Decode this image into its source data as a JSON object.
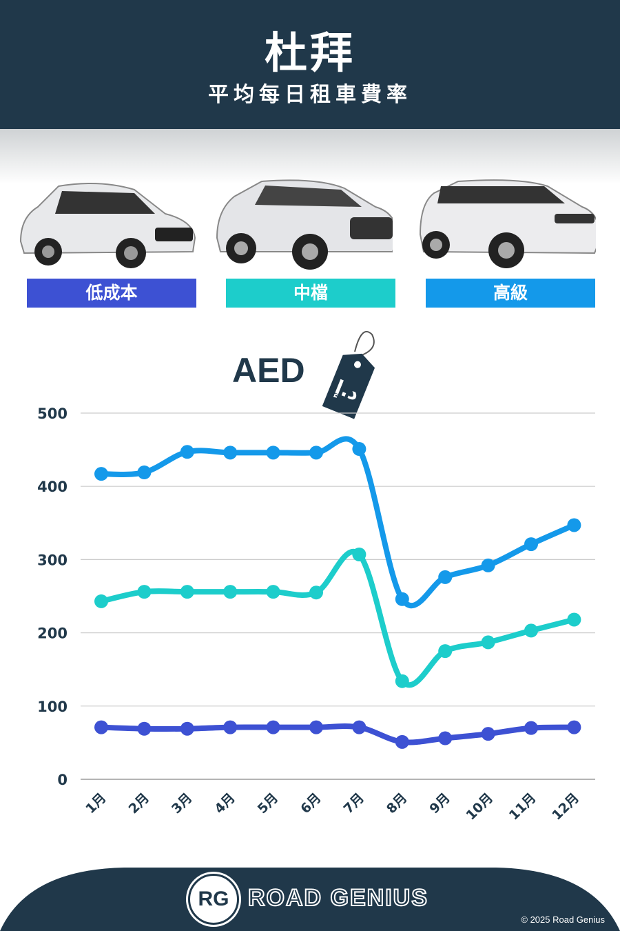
{
  "header": {
    "title": "杜拜",
    "subtitle": "平均每日租車費率"
  },
  "categories_legend": [
    {
      "label": "低成本",
      "color": "#3d51d3",
      "icon": "hatchback-car"
    },
    {
      "label": "中檔",
      "color": "#1dcdcb",
      "icon": "suv-car"
    },
    {
      "label": "高級",
      "color": "#1499ea",
      "icon": "luxury-suv-car"
    }
  ],
  "currency": {
    "label": "AED",
    "tag_text": "د.إ",
    "icon": "price-tag-icon"
  },
  "chart_data": {
    "type": "line",
    "title": "",
    "xlabel": "",
    "ylabel": "",
    "categories": [
      "1月",
      "2月",
      "3月",
      "4月",
      "5月",
      "6月",
      "7月",
      "8月",
      "9月",
      "10月",
      "11月",
      "12月"
    ],
    "ylim": [
      0,
      500
    ],
    "yticks": [
      0,
      100,
      200,
      300,
      400,
      500
    ],
    "grid": true,
    "series": [
      {
        "name": "高級",
        "color": "#1499ea",
        "values": [
          417,
          419,
          447,
          446,
          446,
          446,
          451,
          246,
          276,
          292,
          321,
          347
        ]
      },
      {
        "name": "中檔",
        "color": "#1dcdcb",
        "values": [
          243,
          256,
          256,
          256,
          256,
          255,
          307,
          134,
          175,
          187,
          203,
          218
        ]
      },
      {
        "name": "低成本",
        "color": "#3d51d3",
        "values": [
          71,
          69,
          69,
          71,
          71,
          71,
          71,
          51,
          56,
          62,
          70,
          71
        ]
      }
    ]
  },
  "footer": {
    "brand": "ROAD GENIUS",
    "logo_text": "RG",
    "copyright": "© 2025 Road Genius"
  }
}
